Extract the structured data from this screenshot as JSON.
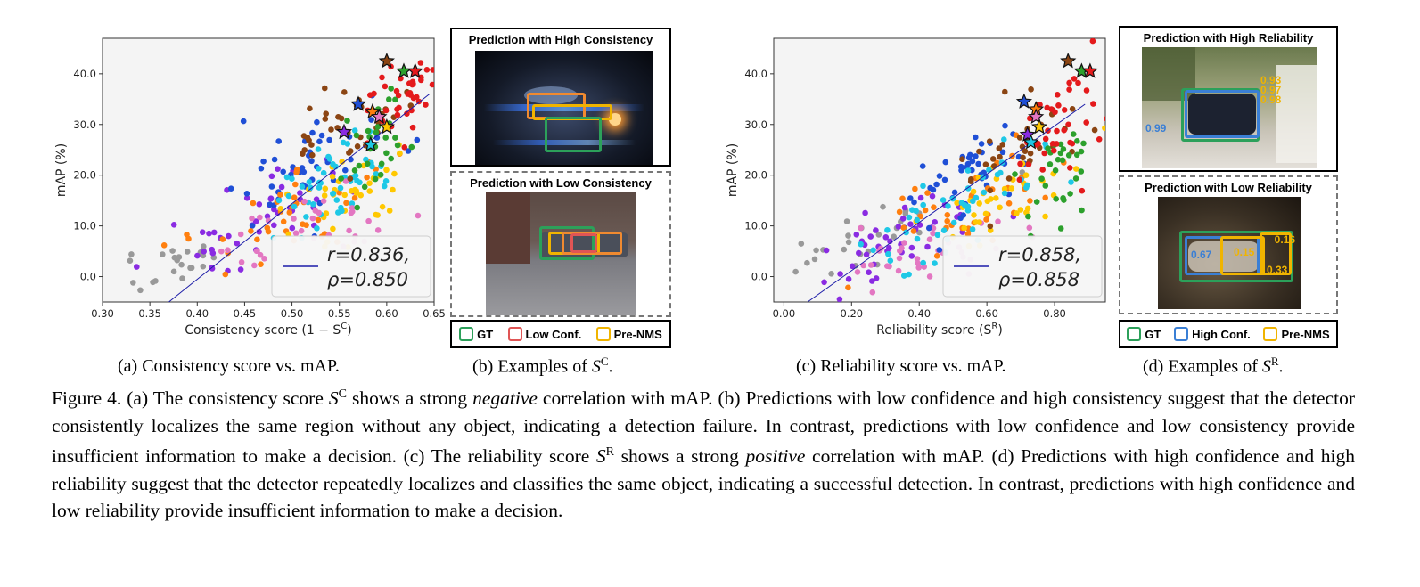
{
  "chart_data": [
    {
      "type": "scatter",
      "xlabel": "Consistency score (1 − S",
      "xlabel_sup": "C",
      "xlabel_end": ")",
      "ylabel": "mAP (%)",
      "xlim": [
        0.3,
        0.65
      ],
      "ylim": [
        -5,
        47
      ],
      "x_ticks": [
        "0.30",
        "0.35",
        "0.40",
        "0.45",
        "0.50",
        "0.55",
        "0.60",
        "0.65"
      ],
      "y_ticks": [
        "0.0",
        "10.0",
        "20.0",
        "30.0",
        "40.0"
      ],
      "fit_line": [
        [
          0.37,
          -5
        ],
        [
          0.645,
          36
        ]
      ],
      "legend": {
        "r": "r=0.836,",
        "rho": "ρ=0.850",
        "placement": "lower-right"
      },
      "clusters": [
        {
          "color": "#999999",
          "cx": 0.38,
          "cy": 3,
          "sx": 0.04,
          "sy": 3,
          "n": 22,
          "slope": 60
        },
        {
          "color": "#8a2be2",
          "cx": 0.46,
          "cy": 10,
          "sx": 0.05,
          "sy": 5,
          "n": 45,
          "slope": 80
        },
        {
          "color": "#1f4fd6",
          "cx": 0.52,
          "cy": 22,
          "sx": 0.04,
          "sy": 7,
          "n": 45,
          "slope": 90
        },
        {
          "color": "#ff7f0e",
          "cx": 0.5,
          "cy": 12,
          "sx": 0.05,
          "sy": 5,
          "n": 40,
          "slope": 70
        },
        {
          "color": "#ffc800",
          "cx": 0.55,
          "cy": 15,
          "sx": 0.04,
          "sy": 6,
          "n": 40,
          "slope": 60
        },
        {
          "color": "#1ec8e6",
          "cx": 0.54,
          "cy": 18,
          "sx": 0.04,
          "sy": 6,
          "n": 50,
          "slope": 70
        },
        {
          "color": "#e377c2",
          "cx": 0.52,
          "cy": 10,
          "sx": 0.05,
          "sy": 6,
          "n": 35,
          "slope": 40
        },
        {
          "color": "#8b4513",
          "cx": 0.56,
          "cy": 30,
          "sx": 0.03,
          "sy": 6,
          "n": 35,
          "slope": 80
        },
        {
          "color": "#2ca02c",
          "cx": 0.6,
          "cy": 26,
          "sx": 0.02,
          "sy": 6,
          "n": 30,
          "slope": 70
        },
        {
          "color": "#e41a1c",
          "cx": 0.62,
          "cy": 35,
          "sx": 0.02,
          "sy": 5,
          "n": 40,
          "slope": 60
        }
      ],
      "stars": [
        {
          "x": 0.6,
          "y": 42.5,
          "color": "#8b4513"
        },
        {
          "x": 0.618,
          "y": 40.5,
          "color": "#2ca02c"
        },
        {
          "x": 0.63,
          "y": 40.5,
          "color": "#e41a1c"
        },
        {
          "x": 0.57,
          "y": 34.0,
          "color": "#1f4fd6"
        },
        {
          "x": 0.585,
          "y": 32.5,
          "color": "#ff7f0e"
        },
        {
          "x": 0.592,
          "y": 31.5,
          "color": "#e377c2"
        },
        {
          "x": 0.6,
          "y": 29.5,
          "color": "#ffc800"
        },
        {
          "x": 0.555,
          "y": 28.5,
          "color": "#8a2be2"
        },
        {
          "x": 0.583,
          "y": 26.0,
          "color": "#1ec8e6"
        }
      ]
    },
    {
      "type": "scatter",
      "xlabel": "Reliability score (S",
      "xlabel_sup": "R",
      "xlabel_end": ")",
      "ylabel": "mAP (%)",
      "xlim": [
        -0.03,
        0.95
      ],
      "ylim": [
        -5,
        47
      ],
      "x_ticks": [
        "0.00",
        "0.20",
        "0.40",
        "0.60",
        "0.80"
      ],
      "y_ticks": [
        "0.0",
        "10.0",
        "20.0",
        "30.0",
        "40.0"
      ],
      "fit_line": [
        [
          0.07,
          -5
        ],
        [
          0.89,
          34
        ]
      ],
      "legend": {
        "r": "r=0.858,",
        "rho": "ρ=0.858",
        "placement": "lower-right"
      },
      "clusters": [
        {
          "color": "#999999",
          "cx": 0.25,
          "cy": 8,
          "sx": 0.13,
          "sy": 4,
          "n": 28,
          "slope": 30
        },
        {
          "color": "#8a2be2",
          "cx": 0.3,
          "cy": 6,
          "sx": 0.12,
          "sy": 4,
          "n": 45,
          "slope": 30
        },
        {
          "color": "#e377c2",
          "cx": 0.4,
          "cy": 4,
          "sx": 0.14,
          "sy": 4,
          "n": 35,
          "slope": 15
        },
        {
          "color": "#1f4fd6",
          "cx": 0.55,
          "cy": 20,
          "sx": 0.1,
          "sy": 6,
          "n": 45,
          "slope": 35
        },
        {
          "color": "#ff7f0e",
          "cx": 0.55,
          "cy": 14,
          "sx": 0.12,
          "sy": 6,
          "n": 40,
          "slope": 25
        },
        {
          "color": "#ffc800",
          "cx": 0.65,
          "cy": 14,
          "sx": 0.1,
          "sy": 6,
          "n": 40,
          "slope": 25
        },
        {
          "color": "#1ec8e6",
          "cx": 0.55,
          "cy": 14,
          "sx": 0.14,
          "sy": 6,
          "n": 50,
          "slope": 30
        },
        {
          "color": "#8b4513",
          "cx": 0.7,
          "cy": 25,
          "sx": 0.1,
          "sy": 7,
          "n": 35,
          "slope": 35
        },
        {
          "color": "#2ca02c",
          "cx": 0.8,
          "cy": 22,
          "sx": 0.07,
          "sy": 8,
          "n": 30,
          "slope": 35
        },
        {
          "color": "#e41a1c",
          "cx": 0.82,
          "cy": 30,
          "sx": 0.06,
          "sy": 8,
          "n": 40,
          "slope": 40
        }
      ],
      "stars": [
        {
          "x": 0.84,
          "y": 42.5,
          "color": "#8b4513"
        },
        {
          "x": 0.88,
          "y": 40.5,
          "color": "#2ca02c"
        },
        {
          "x": 0.905,
          "y": 40.5,
          "color": "#e41a1c"
        },
        {
          "x": 0.71,
          "y": 34.5,
          "color": "#1f4fd6"
        },
        {
          "x": 0.745,
          "y": 33.0,
          "color": "#ff7f0e"
        },
        {
          "x": 0.745,
          "y": 31.5,
          "color": "#e377c2"
        },
        {
          "x": 0.755,
          "y": 29.5,
          "color": "#ffc800"
        },
        {
          "x": 0.72,
          "y": 28.0,
          "color": "#8a2be2"
        },
        {
          "x": 0.73,
          "y": 26.5,
          "color": "#1ec8e6"
        }
      ]
    }
  ],
  "panel_b": {
    "high_title": "Prediction with High Consistency",
    "low_title": "Prediction with Low Consistency",
    "legend": [
      {
        "label": "GT",
        "color": "#2ca05a"
      },
      {
        "label": "Low Conf.",
        "color": "#e05555"
      },
      {
        "label": "Pre-NMS",
        "color": "#f0b400"
      }
    ]
  },
  "panel_d": {
    "high_title": "Prediction with High Reliability",
    "low_title": "Prediction with Low Reliability",
    "high_scores": [
      "0.93",
      "0.97",
      "0.98"
    ],
    "high_blue": "0.99",
    "low_scores": [
      "0.16",
      "0.15",
      "0.33"
    ],
    "low_blue": "0.67",
    "legend": [
      {
        "label": "GT",
        "color": "#2ca05a"
      },
      {
        "label": "High Conf.",
        "color": "#3a7fd5"
      },
      {
        "label": "Pre-NMS",
        "color": "#f0b400"
      }
    ]
  },
  "subcaptions": {
    "a": "(a) Consistency score vs. mAP.",
    "b": "(b) Examples of ",
    "b_sym": "S",
    "b_sup": "C",
    "b_end": ".",
    "c": "(c) Reliability score vs. mAP.",
    "d": "(d) Examples of ",
    "d_sym": "S",
    "d_sup": "R",
    "d_end": "."
  },
  "caption": {
    "t1": "Figure 4.  (a) The consistency score ",
    "s1": "S",
    "sup1": "C",
    "t2": " shows a strong ",
    "em1": "negative",
    "t3": " correlation with mAP. (b) Predictions with low confidence and high consistency suggest that the detector consistently localizes the same region without any object, indicating a detection failure. In contrast, predictions with low confidence and low consistency provide insufficient information to make a decision.  (c) The reliability score ",
    "s2": "S",
    "sup2": "R",
    "t4": " shows a strong ",
    "em2": "positive",
    "t5": " correlation with mAP. (d) Predictions with high confidence and high reliability suggest that the detector repeatedly localizes and classifies the same object, indicating a successful detection. In contrast, predictions with high confidence and low reliability provide insufficient information to make a decision."
  }
}
